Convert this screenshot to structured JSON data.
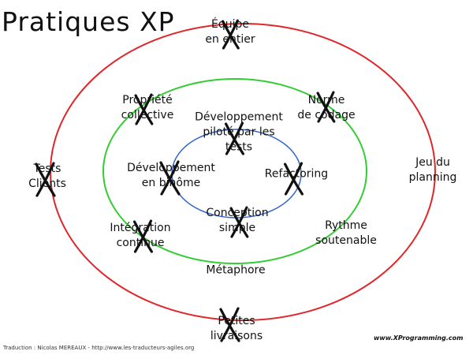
{
  "title": "Pratiques XP",
  "colors": {
    "outer": "#e0262a",
    "middle": "#33cc33",
    "inner": "#3366cc",
    "cross": "#111111"
  },
  "practices": {
    "equipe": {
      "lines": [
        "Équipe",
        "en entier"
      ],
      "crossed": true
    },
    "propriete": {
      "lines": [
        "Propriété",
        "collective"
      ],
      "crossed": true
    },
    "norme": {
      "lines": [
        "Norme",
        "de codage"
      ],
      "crossed": true
    },
    "dev_pilote": {
      "lines": [
        "Développement",
        "piloté par les",
        "tests"
      ],
      "crossed": true
    },
    "tests_clients": {
      "lines": [
        "Tests",
        "Clients"
      ],
      "crossed": true
    },
    "dev_binome": {
      "lines": [
        "Développement",
        "en binôme"
      ],
      "crossed": true
    },
    "refactoring": {
      "lines": [
        "Refactoring"
      ],
      "crossed": true
    },
    "jeu": {
      "lines": [
        "Jeu du",
        "planning"
      ],
      "crossed": false
    },
    "conception": {
      "lines": [
        "Conception",
        "simple"
      ],
      "crossed": true
    },
    "integration": {
      "lines": [
        "Intégration",
        "continue"
      ],
      "crossed": true
    },
    "rythme": {
      "lines": [
        "Rythme",
        "soutenable"
      ],
      "crossed": false
    },
    "metaphore": {
      "lines": [
        "Métaphore"
      ],
      "crossed": false
    },
    "livraisons": {
      "lines": [
        "Petites",
        "livraisons"
      ],
      "crossed": true
    }
  },
  "credit": "Traduction : Nicolas MEREAUX - http://www.les-traducteurs-agiles.org",
  "site": "www.XProgramming.com"
}
